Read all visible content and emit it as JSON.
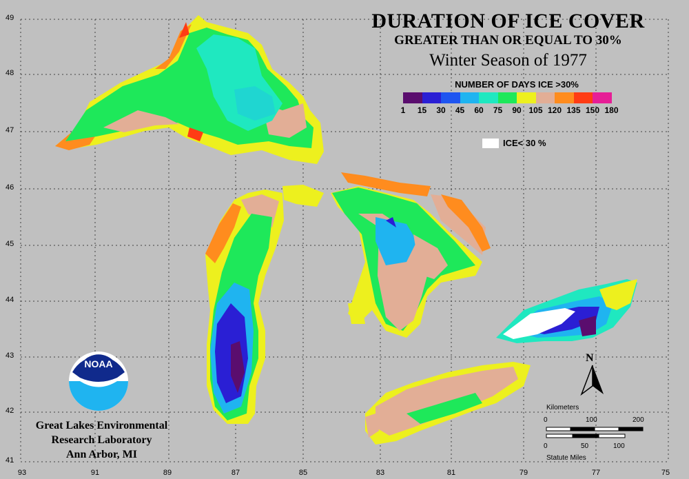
{
  "title": {
    "line1": "DURATION OF ICE COVER",
    "line2": "GREATER THAN OR EQUAL TO 30%",
    "line3": "Winter Season of 1977"
  },
  "legend": {
    "title": "NUMBER OF DAYS ICE >30%",
    "colors": [
      "#5a0d6e",
      "#2a1fd4",
      "#1f55f0",
      "#1fb4f0",
      "#1fe8c0",
      "#1ee85a",
      "#edf01e",
      "#e2ae96",
      "#ff8c1e",
      "#ff3c14",
      "#e61e96"
    ],
    "labels": [
      "1",
      "15",
      "30",
      "45",
      "60",
      "75",
      "90",
      "105",
      "120",
      "135",
      "150",
      "180"
    ],
    "ice_label": "ICE< 30 %",
    "ice_color": "#ffffff"
  },
  "axes": {
    "latitudes": [
      "49",
      "48",
      "47",
      "46",
      "45",
      "44",
      "43",
      "42",
      "41"
    ],
    "longitudes": [
      "93",
      "91",
      "89",
      "87",
      "85",
      "83",
      "81",
      "79",
      "77",
      "75"
    ]
  },
  "organization": {
    "logo_text": "NOAA",
    "line1": "Great Lakes Environmental",
    "line2": "Research Laboratory",
    "line3": "Ann Arbor, MI"
  },
  "north_label": "N",
  "scale": {
    "km_label": "Kilometers",
    "km_ticks": [
      "0",
      "100",
      "200"
    ],
    "mi_ticks": [
      "0",
      "50",
      "100"
    ],
    "mi_label": "Statute Miles"
  }
}
